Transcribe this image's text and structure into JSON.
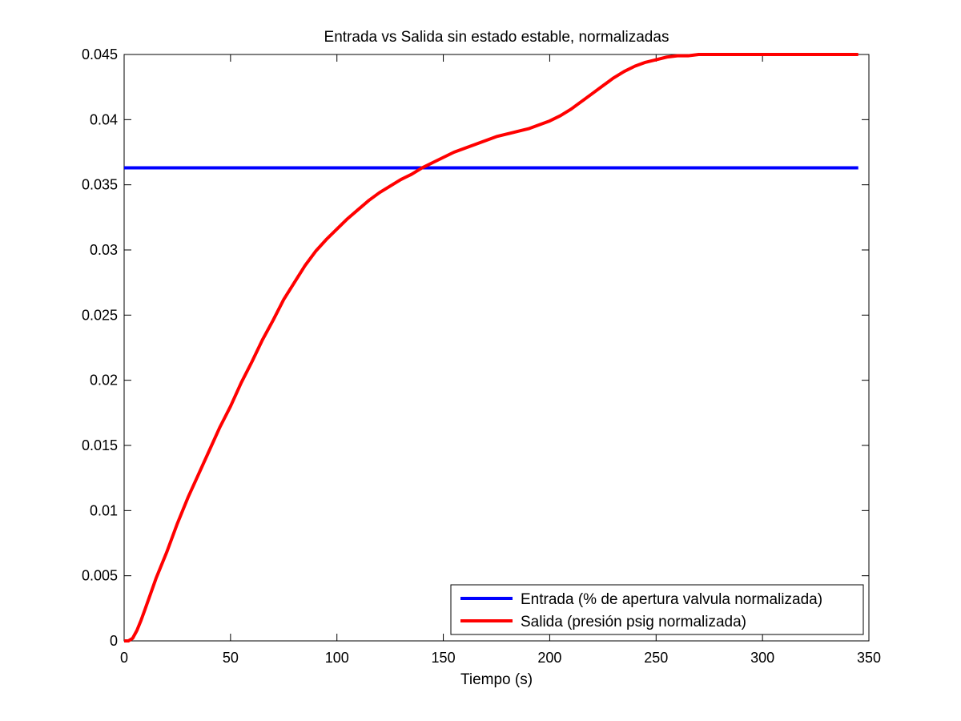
{
  "chart_data": {
    "type": "line",
    "title": "Entrada vs Salida sin estado estable, normalizadas",
    "xlabel": "Tiempo (s)",
    "ylabel": "",
    "xlim": [
      0,
      350
    ],
    "ylim": [
      0,
      0.045
    ],
    "xticks": [
      0,
      50,
      100,
      150,
      200,
      250,
      300,
      350
    ],
    "xtick_labels": [
      "0",
      "50",
      "100",
      "150",
      "200",
      "250",
      "300",
      "350"
    ],
    "yticks": [
      0,
      0.005,
      0.01,
      0.015,
      0.02,
      0.025,
      0.03,
      0.035,
      0.04,
      0.045
    ],
    "ytick_labels": [
      "0",
      "0.005",
      "0.01",
      "0.015",
      "0.02",
      "0.025",
      "0.03",
      "0.035",
      "0.04",
      "0.045"
    ],
    "grid": false,
    "legend_position": "bottom-right",
    "series": [
      {
        "name": "Entrada (% de apertura valvula normalizada)",
        "color": "#0000ff",
        "x": [
          0,
          345
        ],
        "y": [
          0.0363,
          0.0363
        ]
      },
      {
        "name": "Salida (presión psig normalizada)",
        "color": "#ff0000",
        "x": [
          0,
          2,
          4,
          6,
          8,
          10,
          15,
          20,
          25,
          30,
          35,
          40,
          45,
          50,
          55,
          60,
          65,
          70,
          75,
          80,
          85,
          90,
          95,
          100,
          105,
          110,
          115,
          120,
          125,
          130,
          135,
          140,
          145,
          150,
          155,
          160,
          165,
          170,
          175,
          180,
          185,
          190,
          195,
          200,
          205,
          210,
          215,
          220,
          225,
          230,
          235,
          240,
          245,
          250,
          255,
          260,
          265,
          270,
          275,
          280,
          290,
          300,
          320,
          345
        ],
        "y": [
          0,
          0,
          0.0002,
          0.0008,
          0.0016,
          0.0025,
          0.0048,
          0.0068,
          0.009,
          0.011,
          0.0128,
          0.0146,
          0.0164,
          0.018,
          0.0198,
          0.0214,
          0.0231,
          0.0246,
          0.0262,
          0.0275,
          0.0288,
          0.0299,
          0.0308,
          0.0316,
          0.0324,
          0.0331,
          0.0338,
          0.0344,
          0.0349,
          0.0354,
          0.0358,
          0.0363,
          0.0367,
          0.0371,
          0.0375,
          0.0378,
          0.0381,
          0.0384,
          0.0387,
          0.0389,
          0.0391,
          0.0393,
          0.0396,
          0.0399,
          0.0403,
          0.0408,
          0.0414,
          0.042,
          0.0426,
          0.0432,
          0.0437,
          0.0441,
          0.0444,
          0.0446,
          0.0448,
          0.0449,
          0.0449,
          0.045,
          0.045,
          0.045,
          0.045,
          0.045,
          0.045,
          0.045
        ]
      }
    ]
  }
}
